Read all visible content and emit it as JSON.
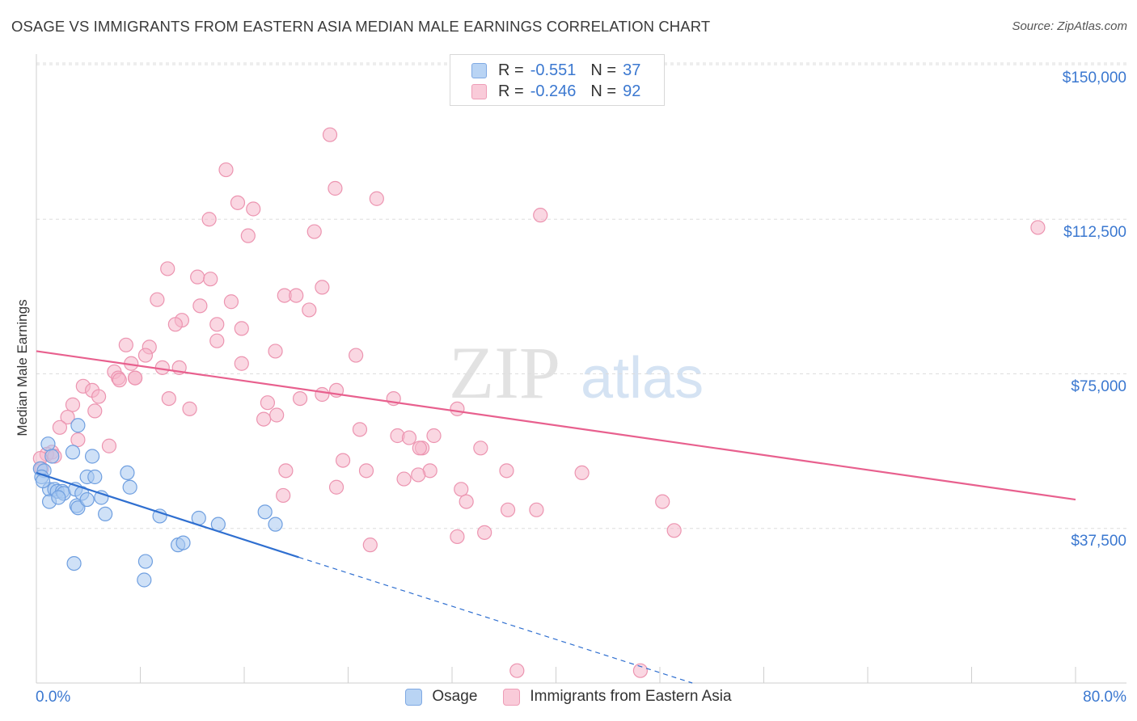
{
  "title": "OSAGE VS IMMIGRANTS FROM EASTERN ASIA MEDIAN MALE EARNINGS CORRELATION CHART",
  "source": "Source: ZipAtlas.com",
  "watermark": {
    "zip": "ZIP",
    "atlas": "atlas"
  },
  "legend_top": [
    {
      "r_label": "R =",
      "r_value": "-0.551",
      "n_label": "N =",
      "n_value": "37"
    },
    {
      "r_label": "R =",
      "r_value": "-0.246",
      "n_label": "N =",
      "n_value": "92"
    }
  ],
  "legend_bottom": [
    "Osage",
    "Immigrants from Eastern Asia"
  ],
  "colors": {
    "osage_fill": "#a8c8f0",
    "osage_stroke": "#6f9fe0",
    "osage_line": "#2f6fd0",
    "asia_fill": "#f6b7ca",
    "asia_stroke": "#ec94b0",
    "asia_line": "#e8608e",
    "tick_text": "#3b78d0",
    "grid": "#dddddd"
  },
  "chart_data": {
    "type": "scatter",
    "title": "OSAGE VS IMMIGRANTS FROM EASTERN ASIA MEDIAN MALE EARNINGS CORRELATION CHART",
    "xlabel": "",
    "ylabel": "Median Male Earnings",
    "xlim": [
      0,
      80
    ],
    "ylim": [
      0,
      155000
    ],
    "x_tick_labels": [
      "0.0%",
      "80.0%"
    ],
    "y_ticks": [
      37500,
      75000,
      112500,
      150000
    ],
    "y_tick_labels": [
      "$37,500",
      "$75,000",
      "$112,500",
      "$150,000"
    ],
    "series": [
      {
        "name": "Osage",
        "r": -0.551,
        "n": 37,
        "trend": {
          "x0": 0,
          "y0": 51000,
          "x1": 20.2,
          "y1": 30500,
          "dashed_to_x": 50.5,
          "dashed_to_y": 0
        },
        "points": [
          [
            0.3,
            52000
          ],
          [
            0.6,
            51500
          ],
          [
            0.4,
            50000
          ],
          [
            0.9,
            58000
          ],
          [
            1.2,
            55000
          ],
          [
            1.0,
            47000
          ],
          [
            1.4,
            47000
          ],
          [
            1.6,
            46500
          ],
          [
            2.0,
            46500
          ],
          [
            2.1,
            46000
          ],
          [
            1.0,
            44000
          ],
          [
            1.7,
            45000
          ],
          [
            3.2,
            62500
          ],
          [
            2.8,
            56000
          ],
          [
            4.3,
            55000
          ],
          [
            3.0,
            47000
          ],
          [
            3.5,
            46000
          ],
          [
            3.1,
            43000
          ],
          [
            3.2,
            42500
          ],
          [
            3.9,
            44500
          ],
          [
            3.9,
            50000
          ],
          [
            4.5,
            50000
          ],
          [
            5.0,
            45000
          ],
          [
            5.3,
            41000
          ],
          [
            7.0,
            51000
          ],
          [
            7.2,
            47500
          ],
          [
            9.5,
            40500
          ],
          [
            10.9,
            33500
          ],
          [
            11.3,
            34000
          ],
          [
            12.5,
            40000
          ],
          [
            14.0,
            38500
          ],
          [
            17.6,
            41500
          ],
          [
            18.4,
            38500
          ],
          [
            2.9,
            29000
          ],
          [
            8.4,
            29500
          ],
          [
            8.3,
            25000
          ],
          [
            0.5,
            49000
          ]
        ]
      },
      {
        "name": "Immigrants from Eastern Asia",
        "r": -0.246,
        "n": 92,
        "trend": {
          "x0": 0,
          "y0": 80500,
          "x1": 80,
          "y1": 44500
        },
        "points": [
          [
            22.6,
            133000
          ],
          [
            14.6,
            124500
          ],
          [
            23.0,
            120000
          ],
          [
            26.2,
            117500
          ],
          [
            15.5,
            116500
          ],
          [
            16.7,
            115000
          ],
          [
            13.3,
            112500
          ],
          [
            38.8,
            113500
          ],
          [
            77.1,
            110500
          ],
          [
            21.4,
            109500
          ],
          [
            16.3,
            108500
          ],
          [
            10.1,
            100500
          ],
          [
            12.4,
            98500
          ],
          [
            13.4,
            98000
          ],
          [
            22.0,
            96000
          ],
          [
            19.1,
            94000
          ],
          [
            20.0,
            94000
          ],
          [
            9.3,
            93000
          ],
          [
            15.0,
            92500
          ],
          [
            12.6,
            91500
          ],
          [
            21.0,
            90500
          ],
          [
            11.2,
            88000
          ],
          [
            10.7,
            87000
          ],
          [
            13.9,
            87000
          ],
          [
            15.8,
            86000
          ],
          [
            13.9,
            83000
          ],
          [
            6.9,
            82000
          ],
          [
            8.7,
            81500
          ],
          [
            18.4,
            80500
          ],
          [
            8.4,
            79500
          ],
          [
            24.6,
            79500
          ],
          [
            7.3,
            77500
          ],
          [
            15.8,
            77500
          ],
          [
            9.7,
            76500
          ],
          [
            11.0,
            76500
          ],
          [
            6.0,
            75500
          ],
          [
            6.3,
            74000
          ],
          [
            6.4,
            73500
          ],
          [
            7.6,
            74000
          ],
          [
            7.6,
            74000
          ],
          [
            3.6,
            72000
          ],
          [
            4.3,
            71000
          ],
          [
            23.1,
            71000
          ],
          [
            22.0,
            70000
          ],
          [
            4.8,
            69500
          ],
          [
            10.2,
            69000
          ],
          [
            20.3,
            69000
          ],
          [
            27.5,
            69000
          ],
          [
            17.8,
            68000
          ],
          [
            2.8,
            67500
          ],
          [
            11.8,
            66500
          ],
          [
            32.4,
            66500
          ],
          [
            4.5,
            66000
          ],
          [
            18.5,
            65000
          ],
          [
            17.5,
            64000
          ],
          [
            2.4,
            64500
          ],
          [
            1.8,
            62000
          ],
          [
            24.9,
            61500
          ],
          [
            27.8,
            60000
          ],
          [
            28.7,
            59500
          ],
          [
            30.6,
            60000
          ],
          [
            3.2,
            59000
          ],
          [
            5.6,
            57500
          ],
          [
            29.7,
            57000
          ],
          [
            29.5,
            57000
          ],
          [
            34.2,
            57000
          ],
          [
            1.2,
            56000
          ],
          [
            0.8,
            55500
          ],
          [
            1.4,
            55000
          ],
          [
            0.3,
            54500
          ],
          [
            23.6,
            54000
          ],
          [
            0.4,
            52000
          ],
          [
            19.2,
            51500
          ],
          [
            25.4,
            51500
          ],
          [
            30.3,
            51500
          ],
          [
            36.2,
            51500
          ],
          [
            42.0,
            51000
          ],
          [
            29.4,
            50500
          ],
          [
            28.3,
            49500
          ],
          [
            23.1,
            47500
          ],
          [
            32.7,
            47000
          ],
          [
            19.0,
            45500
          ],
          [
            33.1,
            44000
          ],
          [
            38.5,
            42000
          ],
          [
            36.3,
            42000
          ],
          [
            48.2,
            44000
          ],
          [
            49.1,
            37000
          ],
          [
            34.5,
            36500
          ],
          [
            32.4,
            35500
          ],
          [
            25.7,
            33500
          ],
          [
            37.0,
            3000
          ],
          [
            46.5,
            3000
          ]
        ]
      }
    ]
  }
}
